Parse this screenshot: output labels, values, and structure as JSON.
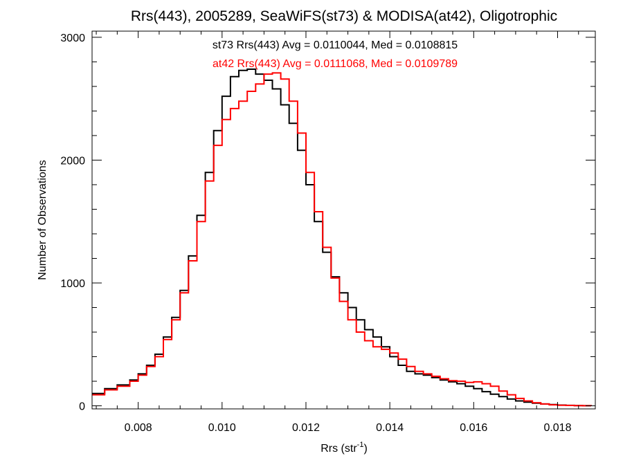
{
  "chart_data": {
    "type": "line",
    "title": "Rrs(443), 2005289, SeaWiFS(st73) & MODISA(at42), Oligotrophic",
    "xlabel": "Rrs (str",
    "xlabel_sup": "-1",
    "xlabel_end": ")",
    "ylabel": "Number of Observations",
    "xlim": [
      0.0069,
      0.0189
    ],
    "ylim": [
      -25,
      3050
    ],
    "x_ticks": [
      {
        "value": 0.008,
        "label": "0.008"
      },
      {
        "value": 0.01,
        "label": "0.010"
      },
      {
        "value": 0.012,
        "label": "0.012"
      },
      {
        "value": 0.014,
        "label": "0.014"
      },
      {
        "value": 0.016,
        "label": "0.016"
      },
      {
        "value": 0.018,
        "label": "0.018"
      }
    ],
    "y_ticks": [
      {
        "value": 0,
        "label": "0"
      },
      {
        "value": 1000,
        "label": "1000"
      },
      {
        "value": 2000,
        "label": "2000"
      },
      {
        "value": 3000,
        "label": "3000"
      }
    ],
    "grid": false,
    "annotations": [
      {
        "text": "st73 Rrs(443) Avg = 0.0110044, Med = 0.0108815",
        "color": "#000000"
      },
      {
        "text": "at42 Rrs(443) Avg = 0.0111068, Med = 0.0109789",
        "color": "#ff0000"
      }
    ],
    "series": [
      {
        "color": "#000000",
        "x": [
          0.0069,
          0.0072,
          0.0075,
          0.0078,
          0.008,
          0.0082,
          0.0084,
          0.0086,
          0.0088,
          0.009,
          0.0092,
          0.0094,
          0.0096,
          0.0098,
          0.01,
          0.0102,
          0.0104,
          0.0106,
          0.0108,
          0.011,
          0.0112,
          0.0114,
          0.0116,
          0.0118,
          0.012,
          0.0122,
          0.0124,
          0.0126,
          0.0128,
          0.013,
          0.0132,
          0.0134,
          0.0136,
          0.0138,
          0.014,
          0.0142,
          0.0144,
          0.0146,
          0.0148,
          0.015,
          0.0152,
          0.0154,
          0.0156,
          0.0158,
          0.016,
          0.0162,
          0.0164,
          0.0166,
          0.0168,
          0.017,
          0.0172,
          0.0174,
          0.0176,
          0.0178,
          0.018,
          0.0182,
          0.0184,
          0.0186,
          0.0188
        ],
        "y": [
          100,
          140,
          170,
          210,
          260,
          330,
          420,
          560,
          720,
          940,
          1220,
          1550,
          1900,
          2240,
          2520,
          2680,
          2730,
          2740,
          2700,
          2650,
          2580,
          2450,
          2300,
          2080,
          1800,
          1500,
          1250,
          1050,
          920,
          800,
          700,
          620,
          560,
          480,
          400,
          330,
          280,
          260,
          250,
          230,
          210,
          195,
          180,
          160,
          140,
          115,
          95,
          75,
          55,
          40,
          30,
          22,
          15,
          10,
          6,
          4,
          2,
          1,
          0
        ]
      },
      {
        "color": "#ff0000",
        "x": [
          0.0069,
          0.0072,
          0.0075,
          0.0078,
          0.008,
          0.0082,
          0.0084,
          0.0086,
          0.0088,
          0.009,
          0.0092,
          0.0094,
          0.0096,
          0.0098,
          0.01,
          0.0102,
          0.0104,
          0.0106,
          0.0108,
          0.011,
          0.0112,
          0.0114,
          0.0116,
          0.0118,
          0.012,
          0.0122,
          0.0124,
          0.0126,
          0.0128,
          0.013,
          0.0132,
          0.0134,
          0.0136,
          0.0138,
          0.014,
          0.0142,
          0.0144,
          0.0146,
          0.0148,
          0.015,
          0.0152,
          0.0154,
          0.0156,
          0.0158,
          0.016,
          0.0162,
          0.0164,
          0.0166,
          0.0168,
          0.017,
          0.0172,
          0.0174,
          0.0176,
          0.0178,
          0.018,
          0.0182,
          0.0184,
          0.0186,
          0.0188
        ],
        "y": [
          90,
          130,
          160,
          200,
          250,
          320,
          400,
          540,
          700,
          920,
          1180,
          1500,
          1830,
          2120,
          2330,
          2420,
          2480,
          2560,
          2620,
          2700,
          2710,
          2660,
          2480,
          2220,
          1900,
          1580,
          1290,
          1040,
          850,
          700,
          600,
          530,
          480,
          460,
          430,
          380,
          320,
          280,
          260,
          240,
          220,
          205,
          200,
          190,
          195,
          180,
          160,
          120,
          90,
          60,
          40,
          25,
          15,
          8,
          5,
          3,
          2,
          1,
          0
        ]
      }
    ]
  }
}
